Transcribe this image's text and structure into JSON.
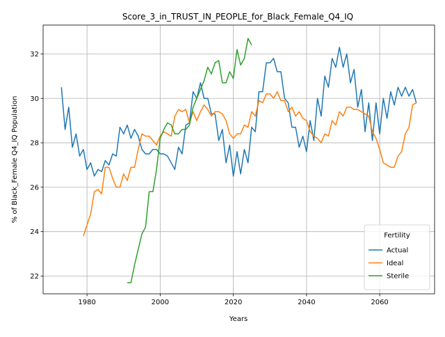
{
  "chart_data": {
    "type": "line",
    "title": "Score_3_in_TRUST_IN_PEOPLE_for_Black_Female_Q4_IQ",
    "xlabel": "Years",
    "ylabel": "% of Black_Female Q4_IQ Population",
    "xlim": [
      1968,
      2075
    ],
    "ylim": [
      21.2,
      33.3
    ],
    "xticks": [
      1980,
      2000,
      2020,
      2040,
      2060
    ],
    "yticks": [
      22,
      24,
      26,
      28,
      30,
      32
    ],
    "grid": true,
    "legend": {
      "title": "Fertility",
      "placement": "lower-right"
    },
    "series": [
      {
        "name": "Actual",
        "color": "#1f77b4",
        "x": [
          1973,
          1974,
          1975,
          1976,
          1977,
          1978,
          1979,
          1980,
          1981,
          1982,
          1983,
          1984,
          1985,
          1986,
          1987,
          1988,
          1989,
          1990,
          1991,
          1992,
          1993,
          1994,
          1995,
          1996,
          1997,
          1998,
          1999,
          2000,
          2001,
          2002,
          2003,
          2004,
          2005,
          2006,
          2007,
          2008,
          2009,
          2010,
          2011,
          2012,
          2013,
          2014,
          2015,
          2016,
          2017,
          2018,
          2019,
          2020,
          2021,
          2022,
          2023,
          2024,
          2025,
          2026,
          2027,
          2028,
          2029,
          2030,
          2031,
          2032,
          2033,
          2034,
          2035,
          2036,
          2037,
          2038,
          2039,
          2040,
          2041,
          2042,
          2043,
          2044,
          2045,
          2046,
          2047,
          2048,
          2049,
          2050,
          2051,
          2052,
          2053,
          2054,
          2055,
          2056,
          2057,
          2058,
          2059,
          2060,
          2061,
          2062,
          2063,
          2064,
          2065,
          2066,
          2067,
          2068,
          2069,
          2070
        ],
        "values": [
          30.5,
          28.6,
          29.6,
          27.8,
          28.4,
          27.4,
          27.7,
          26.8,
          27.1,
          26.5,
          26.8,
          26.7,
          27.2,
          27.0,
          27.5,
          27.4,
          28.7,
          28.4,
          28.8,
          28.2,
          28.6,
          28.3,
          27.7,
          27.5,
          27.5,
          27.7,
          27.7,
          27.5,
          27.5,
          27.4,
          27.1,
          26.8,
          27.8,
          27.5,
          28.8,
          28.9,
          30.3,
          30.0,
          30.7,
          30.0,
          30.0,
          29.3,
          29.3,
          28.1,
          28.6,
          27.1,
          27.9,
          26.5,
          27.6,
          26.6,
          27.7,
          27.1,
          28.7,
          28.5,
          30.3,
          30.3,
          31.6,
          31.6,
          31.8,
          31.2,
          31.2,
          30.0,
          29.8,
          28.7,
          28.7,
          27.8,
          28.3,
          27.6,
          29.0,
          28.1,
          30.0,
          29.2,
          31.0,
          30.5,
          31.8,
          31.4,
          32.3,
          31.4,
          32.0,
          30.7,
          31.3,
          29.6,
          30.4,
          28.5,
          29.8,
          28.1,
          29.8,
          28.4,
          30.0,
          29.1,
          30.3,
          29.7,
          30.5,
          30.1,
          30.5,
          30.1,
          30.4,
          29.8
        ]
      },
      {
        "name": "Ideal",
        "color": "#ff7f0e",
        "x": [
          1979,
          1980,
          1981,
          1982,
          1983,
          1984,
          1985,
          1986,
          1987,
          1988,
          1989,
          1990,
          1991,
          1992,
          1993,
          1994,
          1995,
          1996,
          1997,
          1998,
          1999,
          2000,
          2001,
          2002,
          2003,
          2004,
          2005,
          2006,
          2007,
          2008,
          2009,
          2010,
          2011,
          2012,
          2013,
          2014,
          2015,
          2016,
          2017,
          2018,
          2019,
          2020,
          2021,
          2022,
          2023,
          2024,
          2025,
          2026,
          2027,
          2028,
          2029,
          2030,
          2031,
          2032,
          2033,
          2034,
          2035,
          2036,
          2037,
          2038,
          2039,
          2040,
          2041,
          2042,
          2043,
          2044,
          2045,
          2046,
          2047,
          2048,
          2049,
          2050,
          2051,
          2052,
          2053,
          2054,
          2055,
          2056,
          2057,
          2058,
          2059,
          2060,
          2061,
          2062,
          2063,
          2064,
          2065,
          2066,
          2067,
          2068,
          2069,
          2070
        ],
        "values": [
          23.8,
          24.3,
          24.8,
          25.8,
          25.9,
          25.7,
          26.9,
          26.9,
          26.4,
          26.0,
          26.0,
          26.6,
          26.3,
          26.9,
          26.9,
          27.7,
          28.4,
          28.3,
          28.3,
          28.1,
          27.9,
          28.3,
          28.5,
          28.4,
          28.3,
          29.2,
          29.5,
          29.4,
          29.5,
          28.9,
          29.4,
          29.0,
          29.4,
          29.7,
          29.5,
          29.2,
          29.4,
          29.4,
          29.3,
          29.0,
          28.4,
          28.2,
          28.4,
          28.4,
          28.8,
          28.7,
          29.4,
          29.2,
          29.9,
          29.8,
          30.2,
          30.2,
          30.0,
          30.3,
          29.9,
          29.9,
          29.4,
          29.6,
          29.2,
          29.4,
          29.1,
          29.0,
          28.5,
          28.3,
          28.2,
          28.0,
          28.4,
          28.3,
          29.0,
          28.8,
          29.4,
          29.2,
          29.6,
          29.6,
          29.5,
          29.5,
          29.4,
          29.3,
          29.2,
          28.5,
          28.2,
          27.7,
          27.1,
          27.0,
          26.9,
          26.9,
          27.4,
          27.6,
          28.4,
          28.7,
          29.7,
          29.8
        ]
      },
      {
        "name": "Sterile",
        "color": "#2ca02c",
        "x": [
          1991,
          1992,
          1993,
          1994,
          1995,
          1996,
          1997,
          1998,
          1999,
          2000,
          2001,
          2002,
          2003,
          2004,
          2005,
          2006,
          2007,
          2008,
          2009,
          2010,
          2011,
          2012,
          2013,
          2014,
          2015,
          2016,
          2017,
          2018,
          2019,
          2020,
          2021,
          2022,
          2023,
          2024,
          2025
        ],
        "values": [
          21.7,
          21.7,
          22.5,
          23.2,
          23.9,
          24.2,
          25.8,
          25.8,
          26.8,
          28.2,
          28.6,
          28.9,
          28.8,
          28.4,
          28.4,
          28.6,
          28.6,
          28.8,
          29.6,
          30.0,
          30.4,
          30.8,
          31.4,
          31.1,
          31.6,
          31.7,
          30.7,
          30.7,
          31.2,
          30.9,
          32.2,
          31.5,
          31.8,
          32.7,
          32.4
        ]
      }
    ]
  }
}
